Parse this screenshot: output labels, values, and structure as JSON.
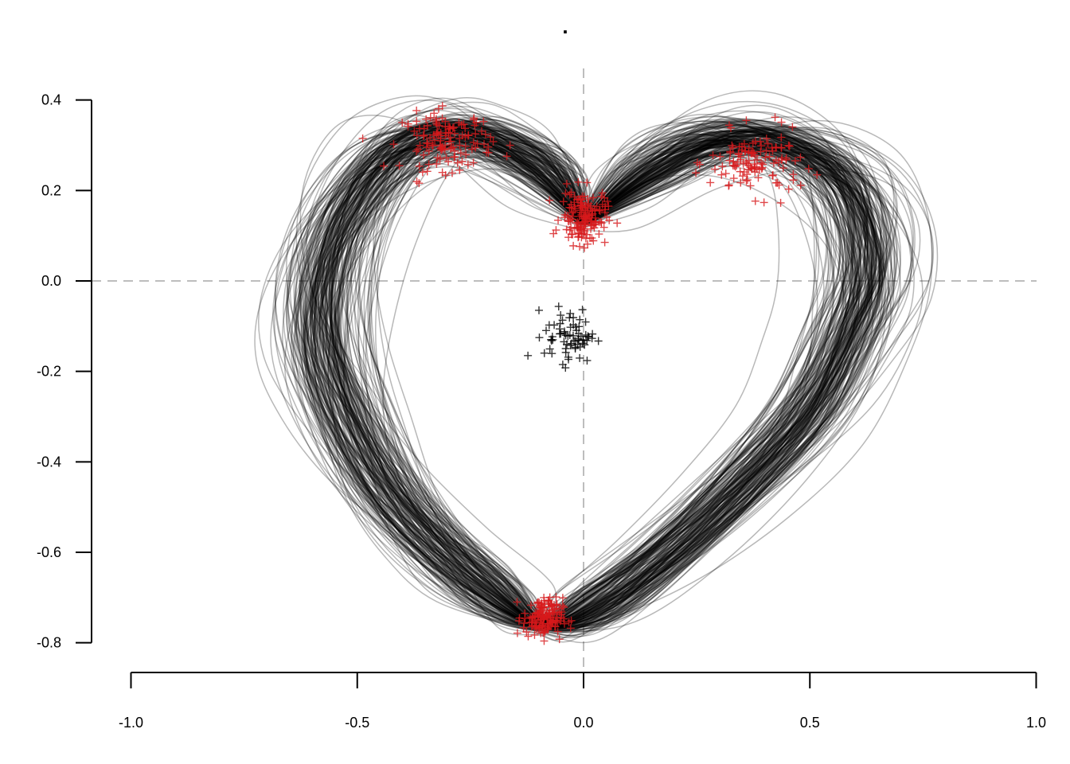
{
  "chart_data": {
    "type": "line",
    "title": ".",
    "xlim": [
      -1.0,
      1.0
    ],
    "ylim": [
      -0.8,
      0.4
    ],
    "x_ticks": [
      -1.0,
      -0.5,
      0.0,
      0.5,
      1.0
    ],
    "x_tick_labels": [
      "-1.0",
      "-0.5",
      "0.0",
      "0.5",
      "1.0"
    ],
    "y_ticks": [
      -0.8,
      -0.6,
      -0.4,
      -0.2,
      0.0,
      0.2,
      0.4
    ],
    "y_tick_labels": [
      "-0.8",
      "-0.6",
      "-0.4",
      "-0.2",
      "0.0",
      "0.2",
      "0.4"
    ],
    "reference_lines": {
      "horizontal_y": 0.0,
      "vertical_x": 0.0,
      "style": "dashed",
      "color": "#bdbdbd"
    },
    "grid": false,
    "legend": "none",
    "series": [
      {
        "kind": "curves",
        "color": "#000000",
        "opacity": 0.28,
        "curve_count": 200,
        "mean_path": [
          [
            0.0,
            0.13
          ],
          [
            -0.08,
            0.24
          ],
          [
            -0.2,
            0.31
          ],
          [
            -0.3,
            0.33
          ],
          [
            -0.42,
            0.28
          ],
          [
            -0.52,
            0.15
          ],
          [
            -0.57,
            0.0
          ],
          [
            -0.57,
            -0.15
          ],
          [
            -0.52,
            -0.3
          ],
          [
            -0.44,
            -0.45
          ],
          [
            -0.33,
            -0.58
          ],
          [
            -0.2,
            -0.69
          ],
          [
            -0.09,
            -0.76
          ],
          [
            0.03,
            -0.72
          ],
          [
            0.19,
            -0.6
          ],
          [
            0.36,
            -0.44
          ],
          [
            0.5,
            -0.28
          ],
          [
            0.58,
            -0.12
          ],
          [
            0.62,
            0.0
          ],
          [
            0.61,
            0.13
          ],
          [
            0.55,
            0.24
          ],
          [
            0.42,
            0.31
          ],
          [
            0.28,
            0.31
          ],
          [
            0.14,
            0.24
          ],
          [
            0.0,
            0.13
          ]
        ]
      },
      {
        "kind": "crosses",
        "color": "#d7191c",
        "clusters": [
          {
            "center": [
              -0.3,
              0.31
            ],
            "spread": [
              0.05,
              0.032
            ],
            "count": 130
          },
          {
            "center": [
              0.38,
              0.26
            ],
            "spread": [
              0.05,
              0.035
            ],
            "count": 120
          },
          {
            "center": [
              0.0,
              0.14
            ],
            "spread": [
              0.025,
              0.03
            ],
            "count": 150
          },
          {
            "center": [
              -0.09,
              -0.745
            ],
            "spread": [
              0.022,
              0.022
            ],
            "count": 150
          }
        ]
      },
      {
        "kind": "crosses",
        "color": "#000000",
        "clusters": [
          {
            "center": [
              -0.03,
              -0.12
            ],
            "spread": [
              0.028,
              0.03
            ],
            "count": 70
          }
        ]
      }
    ]
  }
}
